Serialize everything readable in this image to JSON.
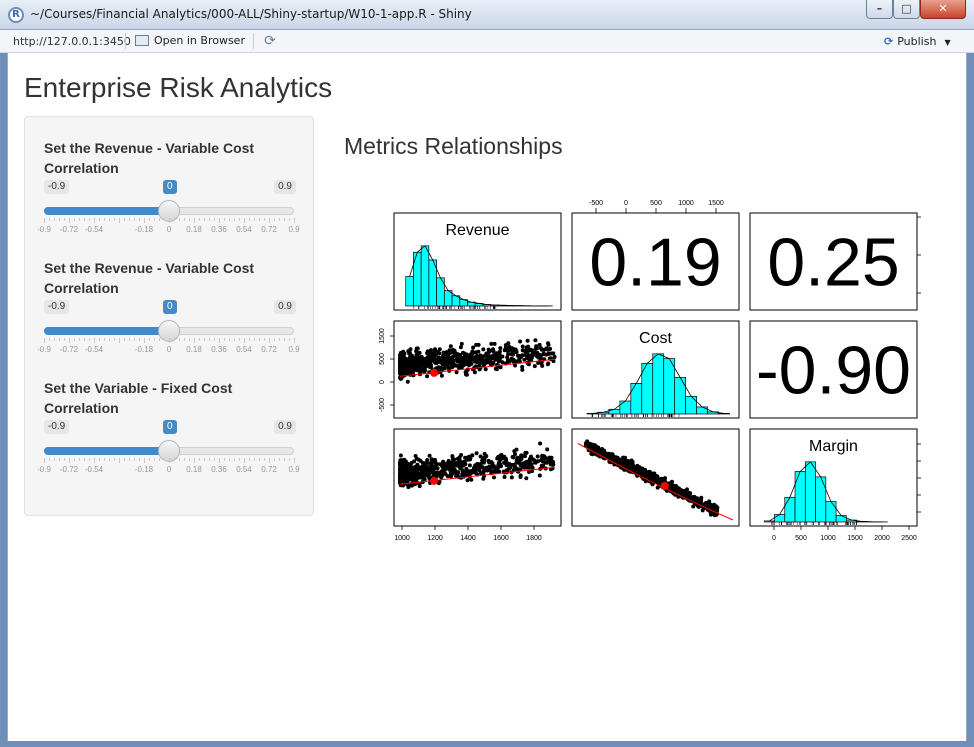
{
  "window": {
    "title": "~/Courses/Financial Analytics/000-ALL/Shiny-startup/W10-1-app.R - Shiny",
    "app_icon": "R",
    "minimize_icon": "minimize-icon",
    "maximize_icon": "maximize-icon",
    "close_icon": "close-icon"
  },
  "toolbar": {
    "url": "http://127.0.0.1:3450",
    "open_in_browser": "Open in Browser",
    "publish": "Publish"
  },
  "page": {
    "title": "Enterprise Risk Analytics",
    "main_title": "Metrics Relationships"
  },
  "sliders": [
    {
      "label": "Set the Revenue - Variable Cost Correlation",
      "min_label": "-0.9",
      "max_label": "0.9",
      "value_label": "0",
      "min": -0.9,
      "max": 0.9,
      "value": 0,
      "tick_labels": [
        "-0.9",
        "-0.72",
        "-0.54",
        "-0.18",
        "0",
        "0.18",
        "0.36",
        "0.54",
        "0.72",
        "0.9"
      ]
    },
    {
      "label": "Set the Revenue - Variable Cost Correlation",
      "min_label": "-0.9",
      "max_label": "0.9",
      "value_label": "0",
      "min": -0.9,
      "max": 0.9,
      "value": 0,
      "tick_labels": [
        "-0.9",
        "-0.72",
        "-0.54",
        "-0.18",
        "0",
        "0.18",
        "0.36",
        "0.54",
        "0.72",
        "0.9"
      ]
    },
    {
      "label": "Set the Variable - Fixed Cost Correlation",
      "min_label": "-0.9",
      "max_label": "0.9",
      "value_label": "0",
      "min": -0.9,
      "max": 0.9,
      "value": 0,
      "tick_labels": [
        "-0.9",
        "-0.72",
        "-0.54",
        "-0.18",
        "0",
        "0.18",
        "0.36",
        "0.54",
        "0.72",
        "0.9"
      ]
    }
  ],
  "chart_data": {
    "type": "scatter",
    "variables": [
      "Revenue",
      "Cost",
      "Margin"
    ],
    "correlations": [
      {
        "row": "Revenue",
        "col": "Cost",
        "value": "0.19"
      },
      {
        "row": "Revenue",
        "col": "Margin",
        "value": "0.25"
      },
      {
        "row": "Cost",
        "col": "Margin",
        "value": "-0.90"
      }
    ],
    "axes": {
      "revenue_ticks": [
        "1000",
        "1200",
        "1400",
        "1600",
        "1800"
      ],
      "cost_ticks": [
        "-500",
        "0",
        "500",
        "1000",
        "1500"
      ],
      "margin_ticks_bottom": [
        "0",
        "500",
        "1000",
        "1500",
        "2000",
        "2500"
      ],
      "margin_ticks_right": [
        "0",
        "500",
        "1000",
        "1500",
        "2000"
      ],
      "revenue_ticks_right": [
        "1000",
        "1400",
        "1800"
      ],
      "cost_ticks_left": [
        "-500",
        "0",
        "500",
        "1500"
      ]
    },
    "histograms": {
      "Revenue": {
        "bin_starts": [
          1000,
          1050,
          1100,
          1150,
          1200,
          1250,
          1300,
          1350,
          1400,
          1450,
          1500,
          1550,
          1600,
          1650,
          1700,
          1750,
          1800,
          1850,
          1900
        ],
        "counts": [
          230,
          420,
          470,
          360,
          220,
          120,
          80,
          50,
          30,
          20,
          12,
          8,
          6,
          4,
          3,
          2,
          1,
          1,
          1
        ]
      },
      "Cost": {
        "bin_starts": [
          -600,
          -400,
          -200,
          0,
          200,
          400,
          600,
          800,
          1000,
          1200,
          1400,
          1600,
          1800
        ],
        "counts": [
          5,
          15,
          40,
          110,
          260,
          430,
          510,
          470,
          310,
          150,
          60,
          18,
          5
        ]
      },
      "Margin": {
        "bin_starts": [
          -200,
          0,
          200,
          400,
          600,
          800,
          1000,
          1200,
          1400,
          1600,
          1800,
          2000
        ],
        "counts": [
          10,
          70,
          230,
          470,
          560,
          420,
          190,
          60,
          18,
          6,
          2,
          1
        ]
      }
    },
    "fit_color": "#ff0000",
    "hist_color": "#00ffff",
    "point_color": "#000000"
  }
}
